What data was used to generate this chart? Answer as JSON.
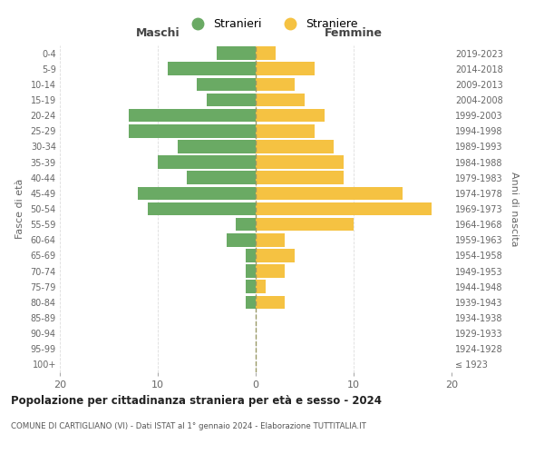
{
  "age_groups": [
    "100+",
    "95-99",
    "90-94",
    "85-89",
    "80-84",
    "75-79",
    "70-74",
    "65-69",
    "60-64",
    "55-59",
    "50-54",
    "45-49",
    "40-44",
    "35-39",
    "30-34",
    "25-29",
    "20-24",
    "15-19",
    "10-14",
    "5-9",
    "0-4"
  ],
  "birth_years": [
    "≤ 1923",
    "1924-1928",
    "1929-1933",
    "1934-1938",
    "1939-1943",
    "1944-1948",
    "1949-1953",
    "1954-1958",
    "1959-1963",
    "1964-1968",
    "1969-1973",
    "1974-1978",
    "1979-1983",
    "1984-1988",
    "1989-1993",
    "1994-1998",
    "1999-2003",
    "2004-2008",
    "2009-2013",
    "2014-2018",
    "2019-2023"
  ],
  "males": [
    0,
    0,
    0,
    0,
    1,
    1,
    1,
    1,
    3,
    2,
    11,
    12,
    7,
    10,
    8,
    13,
    13,
    5,
    6,
    9,
    4
  ],
  "females": [
    0,
    0,
    0,
    0,
    3,
    1,
    3,
    4,
    3,
    10,
    18,
    15,
    9,
    9,
    8,
    6,
    7,
    5,
    4,
    6,
    2
  ],
  "male_color": "#6aaa64",
  "female_color": "#f5c242",
  "title": "Popolazione per cittadinanza straniera per età e sesso - 2024",
  "subtitle": "COMUNE DI CARTIGLIANO (VI) - Dati ISTAT al 1° gennaio 2024 - Elaborazione TUTTITALIA.IT",
  "xlabel_left": "Maschi",
  "xlabel_right": "Femmine",
  "ylabel_left": "Fasce di età",
  "ylabel_right": "Anni di nascita",
  "legend_stranieri": "Stranieri",
  "legend_straniere": "Straniere",
  "xlim": 20,
  "background_color": "#ffffff",
  "grid_color": "#dddddd",
  "bar_height": 0.85
}
